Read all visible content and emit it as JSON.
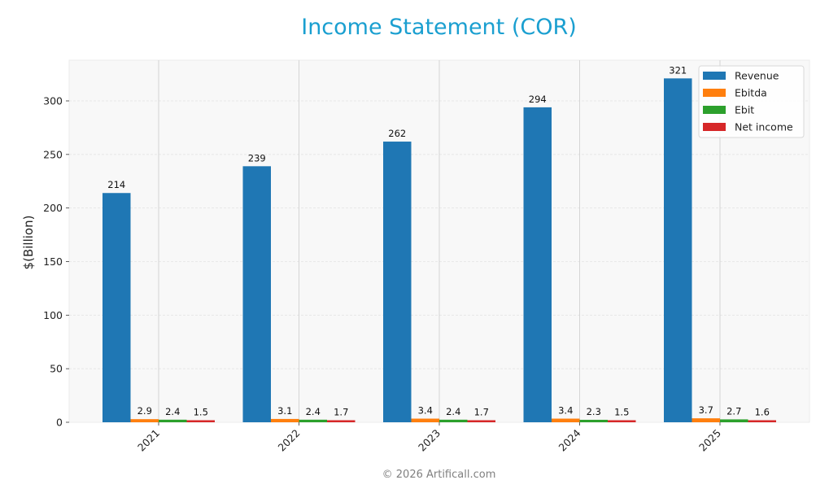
{
  "title": "Income Statement (COR)",
  "footer": "© 2026 Artificall.com",
  "chart_data": {
    "type": "bar",
    "title": "Income Statement (COR)",
    "xlabel": "",
    "ylabel": "$(Billion)",
    "ylim": [
      0,
      335
    ],
    "yticks": [
      0,
      50,
      100,
      150,
      200,
      250,
      300
    ],
    "grid": true,
    "legend_position": "upper right",
    "categories": [
      "2021",
      "2022",
      "2023",
      "2024",
      "2025"
    ],
    "series": [
      {
        "name": "Revenue",
        "color": "#1f77b4",
        "values": [
          214,
          239,
          262,
          294,
          321
        ],
        "labels": [
          "214",
          "239",
          "262",
          "294",
          "321"
        ]
      },
      {
        "name": "Ebitda",
        "color": "#ff7f0e",
        "values": [
          2.9,
          3.1,
          3.4,
          3.4,
          3.7
        ],
        "labels": [
          "2.9",
          "3.1",
          "3.4",
          "3.4",
          "3.7"
        ]
      },
      {
        "name": "Ebit",
        "color": "#2ca02c",
        "values": [
          2.4,
          2.4,
          2.4,
          2.3,
          2.7
        ],
        "labels": [
          "2.4",
          "2.4",
          "2.4",
          "2.3",
          "2.7"
        ]
      },
      {
        "name": "Net income",
        "color": "#d62728",
        "values": [
          1.5,
          1.7,
          1.7,
          1.5,
          1.6
        ],
        "labels": [
          "1.5",
          "1.7",
          "1.7",
          "1.5",
          "1.6"
        ]
      }
    ]
  }
}
